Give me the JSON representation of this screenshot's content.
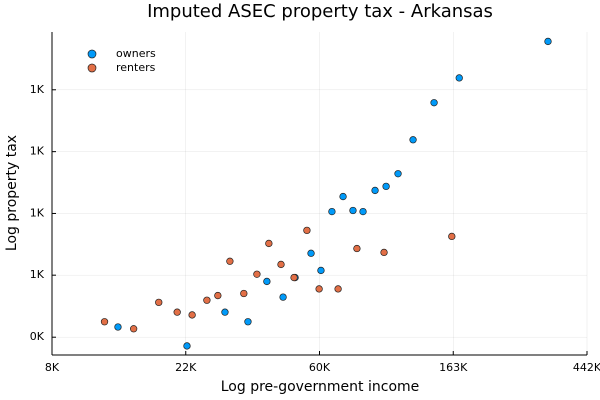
{
  "chart_data": {
    "type": "scatter",
    "title": "Imputed ASEC property tax - Arkansas",
    "x_label": "Log pre-government income",
    "y_label": "Log property tax",
    "log_x": true,
    "log_y": true,
    "grid": true,
    "legend": "top-left",
    "xlim": [
      8103,
      442413
    ],
    "ylim": [
      375,
      1386
    ],
    "xticks": [
      {
        "value": 8103,
        "label": "8K"
      },
      {
        "value": 22026,
        "label": "22K"
      },
      {
        "value": 59874,
        "label": "60K"
      },
      {
        "value": 162755,
        "label": "163K"
      },
      {
        "value": 442413,
        "label": "442K"
      }
    ],
    "yticks": [
      {
        "value": 403,
        "label": "0K"
      },
      {
        "value": 518,
        "label": "1K"
      },
      {
        "value": 665,
        "label": "1K"
      },
      {
        "value": 854,
        "label": "1K"
      },
      {
        "value": 1097,
        "label": "1K"
      }
    ],
    "series": [
      {
        "name": "owners",
        "color": "#009af9",
        "x": [
          13270,
          22230,
          29530,
          35070,
          40400,
          45600,
          49880,
          56200,
          60530,
          65700,
          71400,
          76900,
          82900,
          90700,
          98500,
          107700,
          120500,
          141000,
          170200,
          330500
        ],
        "values": [
          420,
          389,
          446,
          429,
          505,
          474,
          513,
          566,
          528,
          670,
          712,
          673,
          670,
          730,
          742,
          781,
          896,
          1041,
          1151,
          1334
        ]
      },
      {
        "name": "renters",
        "color": "#e26f46",
        "x": [
          12000,
          14920,
          18000,
          20660,
          23100,
          25800,
          28000,
          30640,
          34000,
          37500,
          41000,
          44900,
          49500,
          54500,
          59700,
          68800,
          79200,
          97000,
          161000
        ],
        "values": [
          429,
          417,
          464,
          446,
          441,
          468,
          477,
          548,
          481,
          520,
          589,
          541,
          513,
          621,
          490,
          490,
          577,
          568,
          606
        ]
      }
    ]
  }
}
